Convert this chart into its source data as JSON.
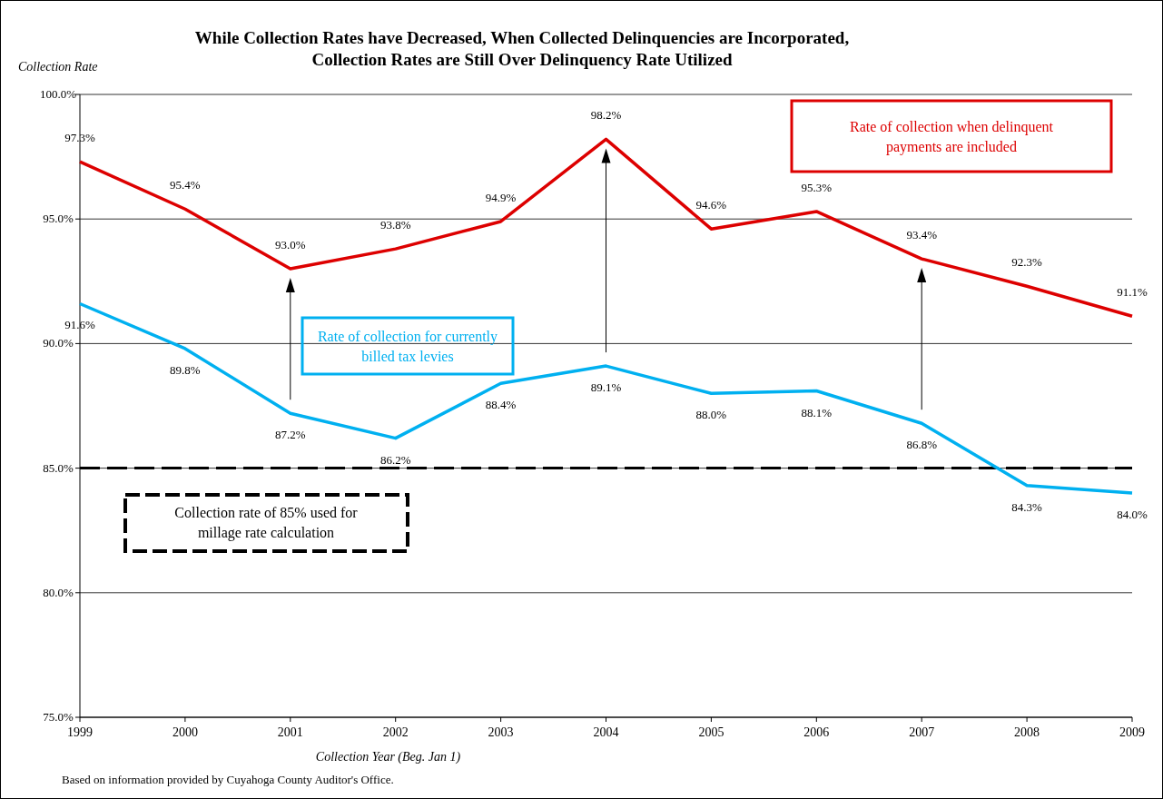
{
  "chart_data": {
    "type": "line",
    "title": "While Collection Rates have Decreased, When Collected Delinquencies are Incorporated,\nCollection Rates are Still Over Delinquency Rate Utilized",
    "ylabel": "Collection Rate",
    "xlabel": "Collection Year (Beg. Jan 1)",
    "x": [
      1999,
      2000,
      2001,
      2002,
      2003,
      2004,
      2005,
      2006,
      2007,
      2008,
      2009
    ],
    "xlim": [
      1999,
      2009
    ],
    "xticks": [
      1999,
      2000,
      2001,
      2002,
      2003,
      2004,
      2005,
      2006,
      2007,
      2008,
      2009
    ],
    "ylim": [
      75,
      100
    ],
    "yticks": [
      {
        "value": 75,
        "label": "75.0%"
      },
      {
        "value": 80,
        "label": "80.0%"
      },
      {
        "value": 85,
        "label": "85.0%"
      },
      {
        "value": 90,
        "label": "90.0%"
      },
      {
        "value": 95,
        "label": "95.0%"
      },
      {
        "value": 100,
        "label": "100.0%"
      }
    ],
    "series": [
      {
        "name": "Rate of collection when delinquent payments are included",
        "color": "#dd0000",
        "values": [
          97.3,
          95.4,
          93.0,
          93.8,
          94.9,
          98.2,
          94.6,
          95.3,
          93.4,
          92.3,
          91.1
        ],
        "value_labels": [
          "97.3%",
          "95.4%",
          "93.0%",
          "93.8%",
          "94.9%",
          "98.2%",
          "94.6%",
          "95.3%",
          "93.4%",
          "92.3%",
          "91.1%"
        ]
      },
      {
        "name": "Rate of collection for currently billed tax levies",
        "color": "#00b0f0",
        "values": [
          91.6,
          89.8,
          87.2,
          86.2,
          88.4,
          89.1,
          88.0,
          88.1,
          86.8,
          84.3,
          84.0
        ],
        "value_labels": [
          "91.6%",
          "89.8%",
          "87.2%",
          "86.2%",
          "88.4%",
          "89.1%",
          "88.0%",
          "88.1%",
          "86.8%",
          "84.3%",
          "84.0%"
        ]
      }
    ],
    "ref_lines": [
      {
        "axis": "y",
        "value": 85,
        "label": "Collection rate of 85% used for millage rate calculation",
        "color": "#000000",
        "line_style": "dashed"
      }
    ],
    "grid": "y",
    "legend": false,
    "marker": "none",
    "line_style": "solid",
    "annotations": [
      "Based on information provided by Cuyahoga County Auditor's Office."
    ]
  }
}
